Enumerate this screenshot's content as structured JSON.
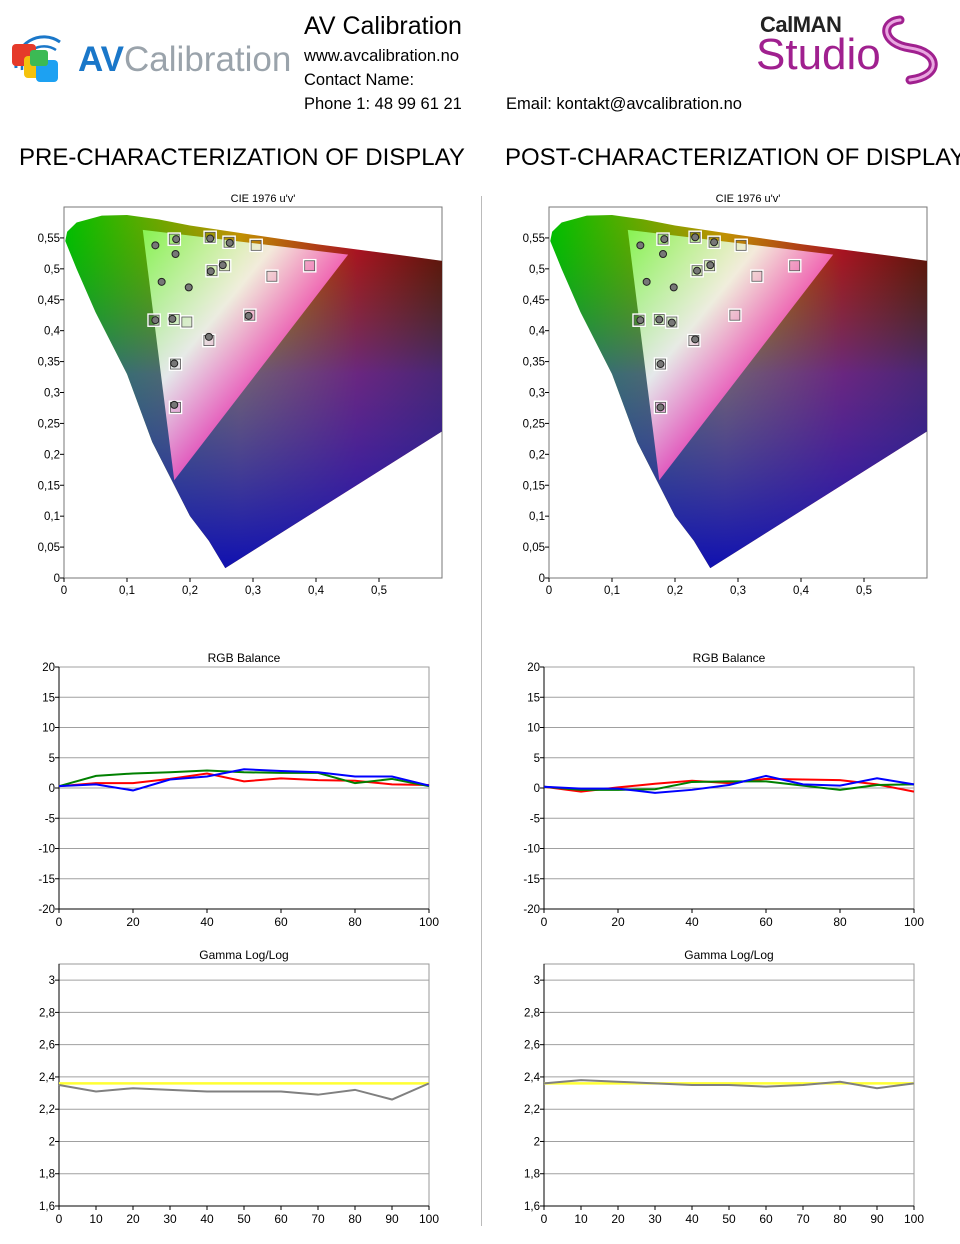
{
  "header": {
    "company": "AV Calibration",
    "website": "www.avcalibration.no",
    "contact_label": "Contact Name:",
    "phone": "Phone 1: 48 99 61 21",
    "email": "Email: kontakt@avcalibration.no",
    "logo_left": {
      "part1": "AV",
      "part2": "Calibration"
    },
    "logo_right": {
      "top": "CalMAN",
      "bottom": "Studio"
    }
  },
  "sections": [
    {
      "title": "PRE-CHARACTERIZATION OF DISPLAY"
    },
    {
      "title": "POST-CHARACTERIZATION OF DISPLAY"
    }
  ],
  "chart_data": [
    {
      "type": "scatter",
      "title": "CIE 1976 u'v'",
      "xlim": [
        0,
        0.6
      ],
      "ylim": [
        0,
        0.6
      ],
      "xticks": [
        "0",
        "0,1",
        "0,2",
        "0,3",
        "0,4",
        "0,5"
      ],
      "yticks": [
        "0",
        "0,05",
        "0,1",
        "0,15",
        "0,2",
        "0,25",
        "0,3",
        "0,35",
        "0,4",
        "0,45",
        "0,5",
        "0,55"
      ],
      "gamut": [
        [
          0.451,
          0.523
        ],
        [
          0.125,
          0.563
        ],
        [
          0.175,
          0.158
        ]
      ],
      "targets": [
        [
          0.175,
          0.548
        ],
        [
          0.232,
          0.551
        ],
        [
          0.262,
          0.543
        ],
        [
          0.305,
          0.538
        ],
        [
          0.255,
          0.505
        ],
        [
          0.235,
          0.497
        ],
        [
          0.33,
          0.488
        ],
        [
          0.39,
          0.505
        ],
        [
          0.295,
          0.425
        ],
        [
          0.143,
          0.417
        ],
        [
          0.175,
          0.418
        ],
        [
          0.195,
          0.414
        ],
        [
          0.23,
          0.384
        ],
        [
          0.177,
          0.346
        ],
        [
          0.177,
          0.276
        ]
      ],
      "measured": [
        [
          0.145,
          0.538
        ],
        [
          0.178,
          0.548
        ],
        [
          0.232,
          0.549
        ],
        [
          0.263,
          0.542
        ],
        [
          0.177,
          0.524
        ],
        [
          0.252,
          0.506
        ],
        [
          0.155,
          0.479
        ],
        [
          0.198,
          0.47
        ],
        [
          0.233,
          0.496
        ],
        [
          0.145,
          0.417
        ],
        [
          0.172,
          0.419
        ],
        [
          0.293,
          0.424
        ],
        [
          0.23,
          0.39
        ],
        [
          0.175,
          0.347
        ],
        [
          0.175,
          0.28
        ]
      ]
    },
    {
      "type": "scatter",
      "title": "CIE 1976 u'v'",
      "xlim": [
        0,
        0.6
      ],
      "ylim": [
        0,
        0.6
      ],
      "xticks": [
        "0",
        "0,1",
        "0,2",
        "0,3",
        "0,4",
        "0,5"
      ],
      "yticks": [
        "0",
        "0,05",
        "0,1",
        "0,15",
        "0,2",
        "0,25",
        "0,3",
        "0,35",
        "0,4",
        "0,45",
        "0,5",
        "0,55"
      ],
      "gamut": [
        [
          0.451,
          0.523
        ],
        [
          0.125,
          0.563
        ],
        [
          0.175,
          0.158
        ]
      ],
      "targets": [
        [
          0.181,
          0.548
        ],
        [
          0.232,
          0.551
        ],
        [
          0.262,
          0.543
        ],
        [
          0.305,
          0.538
        ],
        [
          0.255,
          0.505
        ],
        [
          0.235,
          0.497
        ],
        [
          0.33,
          0.488
        ],
        [
          0.39,
          0.505
        ],
        [
          0.295,
          0.425
        ],
        [
          0.143,
          0.417
        ],
        [
          0.175,
          0.418
        ],
        [
          0.195,
          0.414
        ],
        [
          0.23,
          0.384
        ],
        [
          0.177,
          0.346
        ],
        [
          0.177,
          0.276
        ]
      ],
      "measured": [
        [
          0.145,
          0.538
        ],
        [
          0.183,
          0.548
        ],
        [
          0.232,
          0.551
        ],
        [
          0.262,
          0.543
        ],
        [
          0.181,
          0.524
        ],
        [
          0.256,
          0.506
        ],
        [
          0.155,
          0.479
        ],
        [
          0.198,
          0.47
        ],
        [
          0.235,
          0.497
        ],
        [
          0.145,
          0.417
        ],
        [
          0.175,
          0.418
        ],
        [
          0.195,
          0.413
        ],
        [
          0.232,
          0.386
        ],
        [
          0.177,
          0.346
        ],
        [
          0.177,
          0.276
        ]
      ]
    },
    {
      "type": "line",
      "title": "RGB Balance",
      "xlim": [
        0,
        100
      ],
      "ylim": [
        -20,
        20
      ],
      "xticks": [
        "0",
        "20",
        "40",
        "60",
        "80",
        "100"
      ],
      "yticks": [
        "-20",
        "-15",
        "-10",
        "-5",
        "0",
        "5",
        "10",
        "15",
        "20"
      ],
      "x": [
        0,
        10,
        20,
        30,
        40,
        50,
        60,
        70,
        80,
        90,
        100
      ],
      "series": [
        {
          "color": "#ff0000",
          "values": [
            0.3,
            0.8,
            0.8,
            1.5,
            2.4,
            1.1,
            1.6,
            1.3,
            1.2,
            0.6,
            0.5
          ]
        },
        {
          "color": "#008000",
          "values": [
            0.3,
            2.0,
            2.4,
            2.6,
            2.9,
            2.6,
            2.5,
            2.5,
            0.8,
            1.5,
            0.3
          ]
        },
        {
          "color": "#0000ff",
          "values": [
            0.3,
            0.6,
            -0.4,
            1.4,
            1.9,
            3.1,
            2.8,
            2.6,
            1.9,
            1.9,
            0.4
          ]
        }
      ]
    },
    {
      "type": "line",
      "title": "RGB Balance",
      "xlim": [
        0,
        100
      ],
      "ylim": [
        -20,
        20
      ],
      "xticks": [
        "0",
        "20",
        "40",
        "60",
        "80",
        "100"
      ],
      "yticks": [
        "-20",
        "-15",
        "-10",
        "-5",
        "0",
        "5",
        "10",
        "15",
        "20"
      ],
      "x": [
        0,
        10,
        20,
        30,
        40,
        50,
        60,
        70,
        80,
        90,
        100
      ],
      "series": [
        {
          "color": "#ff0000",
          "values": [
            0.2,
            -0.6,
            0.1,
            0.7,
            1.2,
            0.8,
            1.5,
            1.4,
            1.3,
            0.6,
            -0.6
          ]
        },
        {
          "color": "#008000",
          "values": [
            0.2,
            -0.3,
            -0.3,
            -0.2,
            1.0,
            1.1,
            1.1,
            0.4,
            -0.3,
            0.5,
            0.6
          ]
        },
        {
          "color": "#0000ff",
          "values": [
            0.2,
            -0.1,
            -0.1,
            -0.8,
            -0.3,
            0.5,
            2.0,
            0.6,
            0.4,
            1.6,
            0.6
          ]
        }
      ]
    },
    {
      "type": "line",
      "title": "Gamma Log/Log",
      "xlim": [
        0,
        100
      ],
      "ylim": [
        1.6,
        3.1
      ],
      "xticks": [
        "0",
        "10",
        "20",
        "30",
        "40",
        "50",
        "60",
        "70",
        "80",
        "90",
        "100"
      ],
      "yticks": [
        "1,6",
        "1,8",
        "2",
        "2,2",
        "2,4",
        "2,6",
        "2,8",
        "3"
      ],
      "x": [
        0,
        10,
        20,
        30,
        40,
        50,
        60,
        70,
        80,
        90,
        100
      ],
      "series": [
        {
          "color": "#ffff33",
          "values": [
            2.36,
            2.36,
            2.36,
            2.36,
            2.36,
            2.36,
            2.36,
            2.36,
            2.36,
            2.36,
            2.36
          ]
        },
        {
          "color": "#808080",
          "values": [
            2.35,
            2.31,
            2.33,
            2.32,
            2.31,
            2.31,
            2.31,
            2.29,
            2.32,
            2.26,
            2.36
          ]
        }
      ]
    },
    {
      "type": "line",
      "title": "Gamma Log/Log",
      "xlim": [
        0,
        100
      ],
      "ylim": [
        1.6,
        3.1
      ],
      "xticks": [
        "0",
        "10",
        "20",
        "30",
        "40",
        "50",
        "60",
        "70",
        "80",
        "90",
        "100"
      ],
      "yticks": [
        "1,6",
        "1,8",
        "2",
        "2,2",
        "2,4",
        "2,6",
        "2,8",
        "3"
      ],
      "x": [
        0,
        10,
        20,
        30,
        40,
        50,
        60,
        70,
        80,
        90,
        100
      ],
      "series": [
        {
          "color": "#ffff33",
          "values": [
            2.36,
            2.36,
            2.36,
            2.36,
            2.36,
            2.36,
            2.36,
            2.36,
            2.36,
            2.36,
            2.36
          ]
        },
        {
          "color": "#808080",
          "values": [
            2.36,
            2.38,
            2.37,
            2.36,
            2.35,
            2.35,
            2.34,
            2.35,
            2.37,
            2.33,
            2.36
          ]
        }
      ]
    }
  ]
}
